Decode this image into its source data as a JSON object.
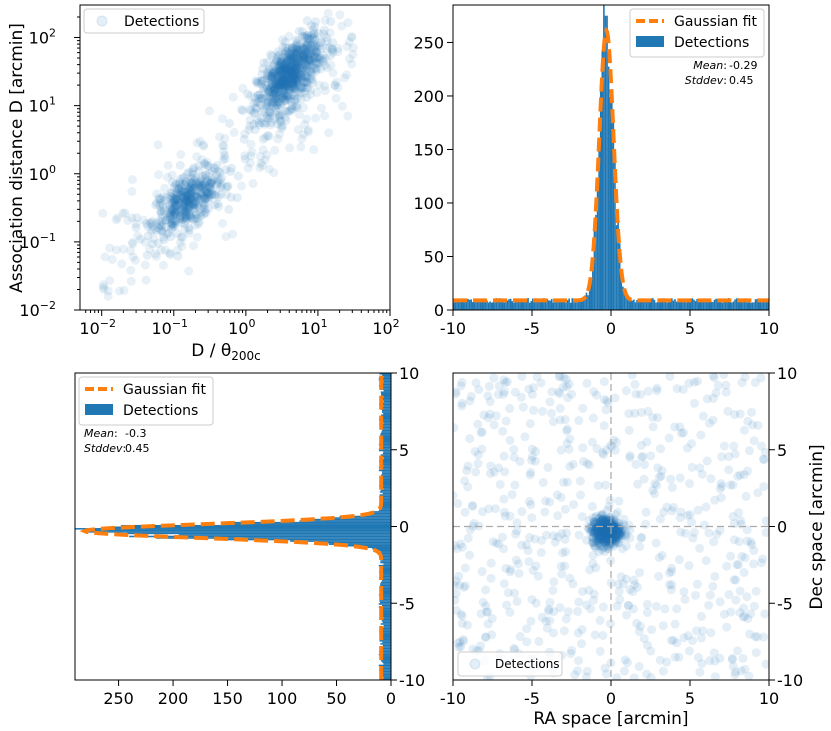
{
  "chart_data": [
    {
      "id": "scatter_log",
      "type": "scatter",
      "xlabel_main": "D / θ",
      "xlabel_sub": "200c",
      "ylabel": "Association distance D [arcmin]",
      "xscale": "log",
      "yscale": "log",
      "xlim": [
        0.005,
        100
      ],
      "ylim": [
        0.01,
        300
      ],
      "xticks": [
        {
          "v": 0.01,
          "e": "−2"
        },
        {
          "v": 0.1,
          "e": "−1"
        },
        {
          "v": 1,
          "e": "0"
        },
        {
          "v": 10,
          "e": "1"
        },
        {
          "v": 100,
          "e": "2"
        }
      ],
      "yticks": [
        {
          "v": 0.01,
          "e": "−2"
        },
        {
          "v": 0.1,
          "e": "−1"
        },
        {
          "v": 1,
          "e": "0"
        },
        {
          "v": 10,
          "e": "1"
        },
        {
          "v": 100,
          "e": "2"
        }
      ],
      "tick_base": "10",
      "legend": [
        "Detections"
      ],
      "legend_position": "upper left",
      "color": "#1f77b4",
      "clusters": [
        {
          "x_log_range": [
            -2.0,
            1.5
          ],
          "y_log_range": [
            -1.8,
            2.5
          ],
          "n": 260
        },
        {
          "x_log_center": -0.8,
          "y_log_center": -0.4,
          "x_log_spread": 0.25,
          "y_log_spread": 0.18,
          "n": 380
        },
        {
          "x_log_center": 0.6,
          "y_log_center": 1.45,
          "x_log_spread": 0.22,
          "y_log_spread": 0.22,
          "n": 700
        }
      ]
    },
    {
      "id": "hist_top",
      "type": "bar",
      "xlim": [
        -10,
        10
      ],
      "ylim": [
        0,
        285
      ],
      "xticks": [
        -10,
        -5,
        0,
        5,
        10
      ],
      "yticks": [
        0,
        50,
        100,
        150,
        200,
        250
      ],
      "legend": [
        "Gaussian fit",
        "Detections"
      ],
      "legend_position": "upper right",
      "fit": {
        "mean": -0.29,
        "stddev": 0.45,
        "amplitude": 252,
        "baseline": 9
      },
      "stats_labels": {
        "mean": "Mean",
        "stddev": "Stddev",
        "mean_value": "-0.29",
        "stddev_value": "0.45"
      },
      "bar_color": "#1f77b4",
      "fit_color": "#ff7f0e",
      "peak_count": 275
    },
    {
      "id": "hist_side",
      "type": "bar",
      "orientation": "horizontal",
      "xlim": [
        290,
        0
      ],
      "ylim": [
        -10,
        10
      ],
      "xticks": [
        250,
        200,
        150,
        100,
        50,
        0
      ],
      "yticks": [
        -10,
        -5,
        0,
        5,
        10
      ],
      "legend": [
        "Gaussian fit",
        "Detections"
      ],
      "legend_position": "upper left",
      "fit": {
        "mean": -0.3,
        "stddev": 0.45,
        "amplitude": 272,
        "baseline": 9
      },
      "stats_labels": {
        "mean": "Mean",
        "stddev": "Stddev",
        "mean_value": "-0.3",
        "stddev_value": "0.45"
      },
      "bar_color": "#1f77b4",
      "fit_color": "#ff7f0e",
      "peak_count": 280
    },
    {
      "id": "scatter_sky",
      "type": "scatter",
      "xlabel": "RA space [arcmin]",
      "ylabel": "Dec space [arcmin]",
      "xlim": [
        -10,
        10
      ],
      "ylim": [
        -10,
        10
      ],
      "xticks": [
        -10,
        -5,
        0,
        5,
        10
      ],
      "yticks": [
        -10,
        -5,
        0,
        5,
        10
      ],
      "legend": [
        "Detections"
      ],
      "legend_position": "lower left",
      "color": "#1f77b4",
      "reference_lines": {
        "x": 0,
        "y": 0
      },
      "clusters": [
        {
          "uniform_range": [
            -10,
            10
          ],
          "n": 620
        },
        {
          "center": [
            -0.29,
            -0.3
          ],
          "stddev": 0.45,
          "n": 600
        }
      ]
    }
  ]
}
